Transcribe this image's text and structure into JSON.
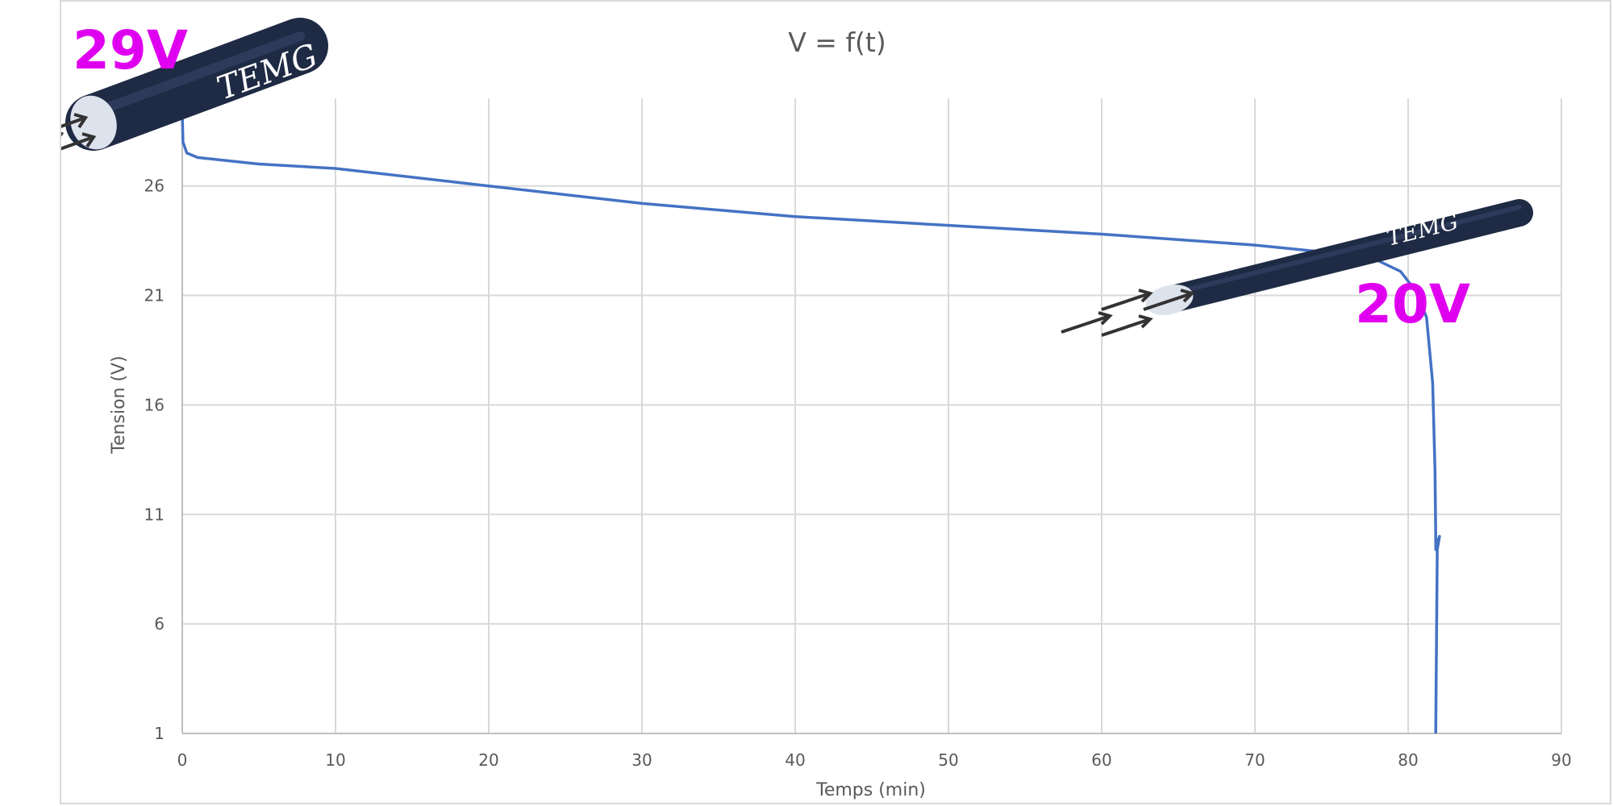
{
  "chart_data": {
    "type": "line",
    "title": "V = f(t)",
    "xlabel": "Temps (min)",
    "ylabel": "Tension (V)",
    "xlim": [
      0,
      90
    ],
    "ylim": [
      1,
      30
    ],
    "xticks": [
      0,
      10,
      20,
      30,
      40,
      50,
      60,
      70,
      80,
      90
    ],
    "yticks": [
      1,
      6,
      11,
      16,
      21,
      26
    ],
    "grid": true,
    "series": [
      {
        "color": "#4472c4",
        "x": [
          0,
          0.05,
          0.3,
          1,
          5,
          10,
          20,
          30,
          40,
          50,
          60,
          70,
          75,
          78,
          79.5,
          80.5,
          81.2,
          81.6,
          81.75,
          81.8,
          81.8,
          81.85,
          81.95,
          82.05,
          81.9,
          81.8
        ],
        "y": [
          29.3,
          28.0,
          27.5,
          27.3,
          27.0,
          26.8,
          26.0,
          25.2,
          24.6,
          24.2,
          23.8,
          23.3,
          22.95,
          22.6,
          22.1,
          21.2,
          20.0,
          17.0,
          13.0,
          10.0,
          9.4,
          9.6,
          9.8,
          10.0,
          9.4,
          1.0
        ]
      }
    ],
    "annotations": [
      {
        "text": "29V",
        "color": "#e000f0"
      },
      {
        "text": "20V",
        "color": "#e000f0"
      }
    ]
  },
  "illustration": {
    "brand_text": "TEMG",
    "color": "#1f2a44",
    "arrow_color": "#333333"
  }
}
